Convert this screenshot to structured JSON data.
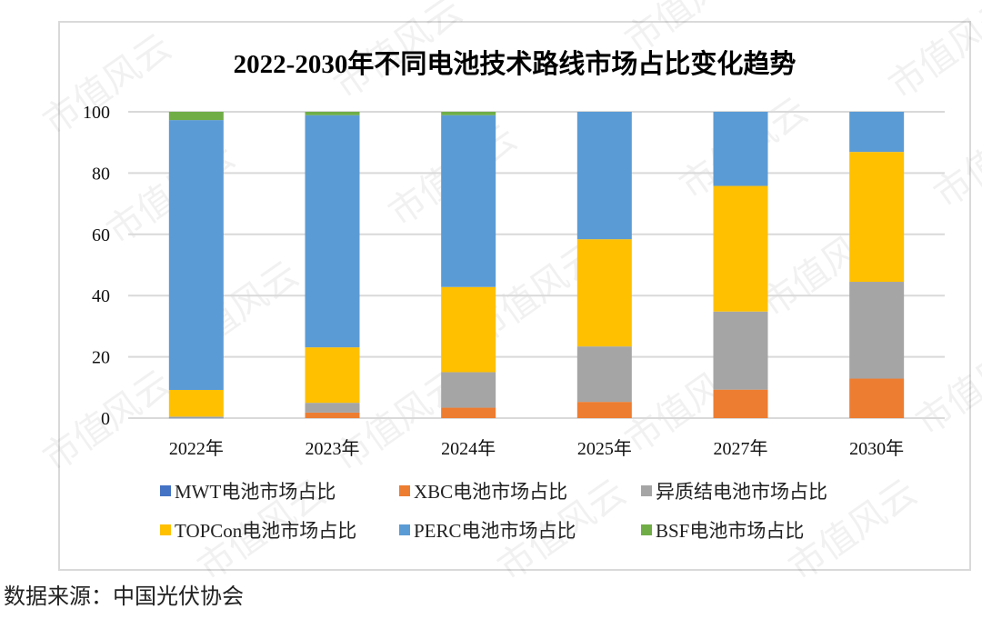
{
  "chart_data": {
    "type": "bar",
    "stacked": true,
    "title": "2022-2030年不同电池技术路线市场占比变化趋势",
    "xlabel": "",
    "ylabel": "",
    "ylim": [
      0,
      100
    ],
    "yticks": [
      0,
      20,
      40,
      60,
      80,
      100
    ],
    "grid": true,
    "legend_position": "bottom",
    "categories": [
      "2022年",
      "2023年",
      "2024年",
      "2025年",
      "2027年",
      "2030年"
    ],
    "series": [
      {
        "name": "MWT电池市场占比",
        "color": "#4472C4",
        "values": [
          0.1,
          0,
          0,
          0,
          0,
          0
        ]
      },
      {
        "name": "XBC电池市场占比",
        "color": "#ED7D31",
        "values": [
          0,
          1.8,
          3.4,
          5.3,
          9.3,
          12.9
        ]
      },
      {
        "name": "异质结电池市场占比",
        "color": "#A5A5A5",
        "values": [
          0.4,
          3.2,
          11.6,
          18.1,
          25.5,
          31.6
        ]
      },
      {
        "name": "TOPCon电池市场占比",
        "color": "#FFC000",
        "values": [
          8.7,
          18.1,
          27.8,
          35.0,
          41.0,
          42.4
        ]
      },
      {
        "name": "PERC电池市场占比",
        "color": "#5B9BD5",
        "values": [
          88.1,
          75.8,
          56.1,
          41.6,
          24.2,
          13.1
        ]
      },
      {
        "name": "BSF电池市场占比",
        "color": "#70AD47",
        "values": [
          2.7,
          1.1,
          1.1,
          0,
          0,
          0
        ]
      }
    ]
  },
  "watermark": "市值风云",
  "source_note": "数据来源：中国光伏协会"
}
